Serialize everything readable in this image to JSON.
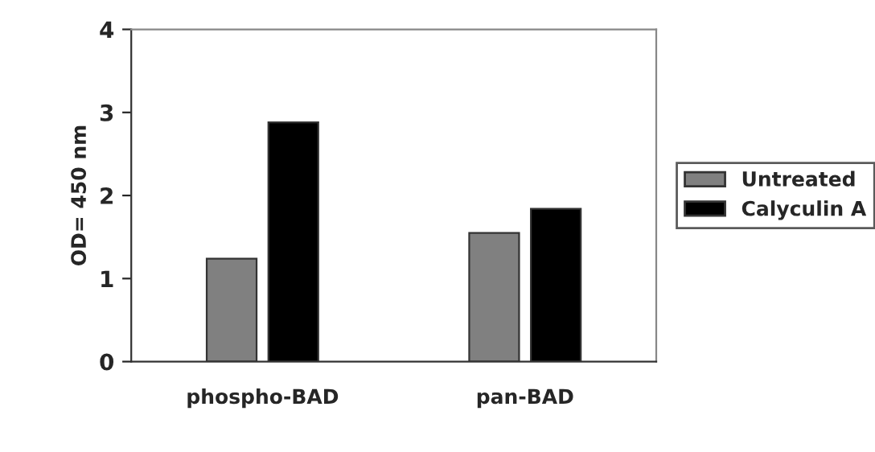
{
  "chart_data": {
    "type": "bar",
    "ylabel": "OD= 450 nm",
    "categories": [
      "phospho-BAD",
      "pan-BAD"
    ],
    "series": [
      {
        "name": "Untreated",
        "color": "#808080",
        "values": [
          1.24,
          1.55
        ]
      },
      {
        "name": "Calyculin A",
        "color": "#000000",
        "values": [
          2.88,
          1.84
        ]
      }
    ],
    "ylim": [
      0,
      4
    ],
    "yticks": [
      0,
      1,
      2,
      3,
      4
    ],
    "grid": false,
    "legend": "right"
  }
}
